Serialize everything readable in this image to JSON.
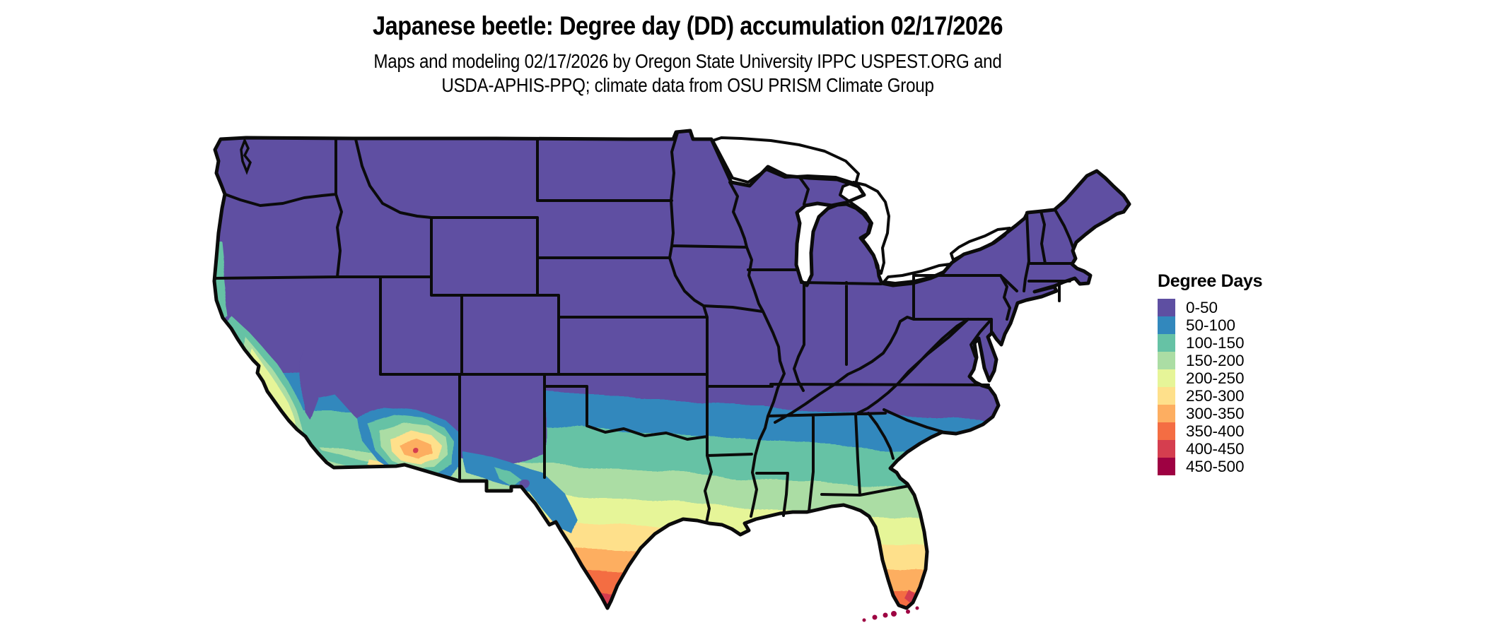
{
  "header": {
    "title": "Japanese beetle: Degree day (DD) accumulation 02/17/2026",
    "subtitle_line1": "Maps and modeling 02/17/2026 by Oregon State University IPPC USPEST.ORG and",
    "subtitle_line2": "USDA-APHIS-PPQ; climate data from OSU PRISM Climate Group"
  },
  "legend": {
    "title": "Degree Days",
    "items": [
      {
        "label": "0-50",
        "color": "#5e4fa2"
      },
      {
        "label": "50-100",
        "color": "#3288bd"
      },
      {
        "label": "100-150",
        "color": "#66c2a5"
      },
      {
        "label": "150-200",
        "color": "#abdda4"
      },
      {
        "label": "200-250",
        "color": "#e6f598"
      },
      {
        "label": "250-300",
        "color": "#fee08b"
      },
      {
        "label": "300-350",
        "color": "#fdae61"
      },
      {
        "label": "350-400",
        "color": "#f46d43"
      },
      {
        "label": "400-450",
        "color": "#d53e4f"
      },
      {
        "label": "450-500",
        "color": "#9e0142"
      }
    ]
  },
  "chart_data": {
    "type": "choropleth-map",
    "title": "Japanese beetle: Degree day (DD) accumulation 02/17/2026",
    "legend_title": "Degree Days",
    "region": "Contiguous United States with state boundaries; Great Lakes shown as water",
    "value_classes": [
      "0-50",
      "50-100",
      "100-150",
      "150-200",
      "200-250",
      "250-300",
      "300-350",
      "350-400",
      "400-450",
      "450-500"
    ],
    "class_colors": [
      "#5e4fa2",
      "#3288bd",
      "#66c2a5",
      "#abdda4",
      "#e6f598",
      "#fee08b",
      "#fdae61",
      "#f46d43",
      "#d53e4f",
      "#9e0142"
    ],
    "pattern": "Degree days accumulate from north (0-50, purple over most northern/central states) southward through blue, teal, green and yellow bands; highest accumulations (orange to red) in south Texas, southern Florida and the Arizona/California low deserts; Florida Keys reach 450-500; coastal/valley California and southern Arizona show locally elevated values"
  }
}
